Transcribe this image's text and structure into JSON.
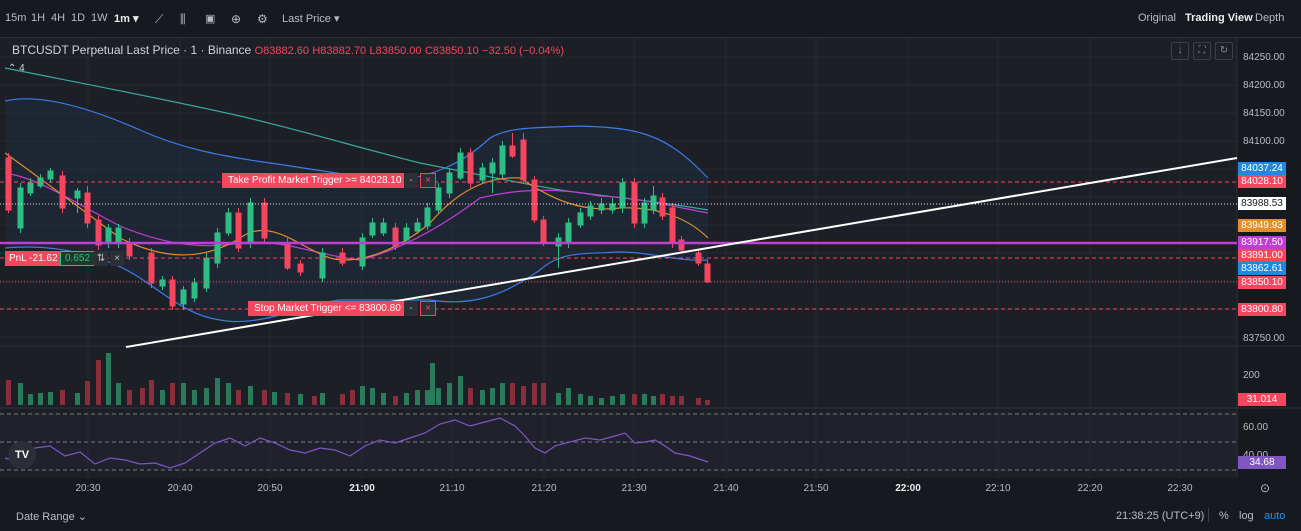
{
  "toolbar": {
    "intervals": [
      "15m",
      "1H",
      "4H",
      "1D",
      "1W"
    ],
    "selected_interval": "1m",
    "price_type": "Last Price",
    "views": [
      "Original",
      "Trading View",
      "Depth"
    ],
    "active_view": "Trading View"
  },
  "legend": {
    "symbol": "BTCUSDT Perpetual Last Price · 1 · Binance",
    "open": "O83882.60",
    "high": "H83882.70",
    "low": "L83850.00",
    "close": "C83850.10",
    "change": "−32.50 (−0.04%)"
  },
  "collapse_count": "4",
  "orders": {
    "take_profit": "Take Profit Market Trigger >= 84028.10",
    "stop_loss": "Stop Market Trigger <= 83800.80",
    "pnl_label": "PnL -21.62",
    "qty": "0.652",
    "dash": "-",
    "close": "×",
    "reverse": "⇅"
  },
  "price_axis": {
    "labels": [
      "84250.00",
      "84200.00",
      "84150.00",
      "84100.00",
      "83750.00"
    ],
    "volume_label": "200",
    "rsi_labels": [
      "60.00",
      "40.00"
    ]
  },
  "price_tags": {
    "t84037": "84037.24",
    "t84028": "84028.10",
    "t83988": "83988.53",
    "t83949": "83949.93",
    "t83917": "83917.50",
    "t83891": "83891.00",
    "t83862": "83862.61",
    "t83850": "83850.10",
    "t83800": "83800.80",
    "volume_tag": "31.014",
    "rsi_tag": "34.68"
  },
  "time_axis": [
    "20:30",
    "20:40",
    "20:50",
    "21:00",
    "21:10",
    "21:20",
    "21:30",
    "21:40",
    "21:50",
    "22:00",
    "22:10",
    "22:20",
    "22:30"
  ],
  "bottom": {
    "date_range": "Date Range",
    "clock": "21:38:25 (UTC+9)",
    "percent": "%",
    "log": "log",
    "auto": "auto"
  },
  "logo_text": "TV",
  "colors": {
    "up": "#2ebd85",
    "down": "#f6465d",
    "ma_purple": "#c03ed6",
    "boll_blue": "#3d7be8"
  }
}
